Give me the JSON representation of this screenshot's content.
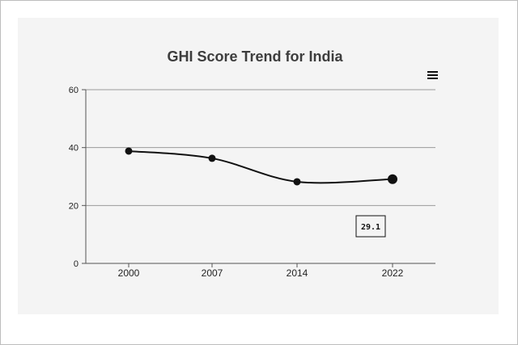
{
  "chart_data": {
    "type": "line",
    "title": "GHI Score Trend for India",
    "xlabel": "",
    "ylabel": "",
    "categories": [
      "2000",
      "2007",
      "2014",
      "2022"
    ],
    "series": [
      {
        "values": [
          38.8,
          36.3,
          28.2,
          29.1
        ]
      }
    ],
    "ylim": [
      0,
      60
    ],
    "yticks": [
      0,
      20,
      40,
      60
    ],
    "grid": true,
    "legend": "none",
    "line_color": "#111111",
    "tooltip": {
      "category": "2022",
      "value": "29.1"
    }
  },
  "ui": {
    "menu_icon": "hamburger-menu-icon"
  }
}
